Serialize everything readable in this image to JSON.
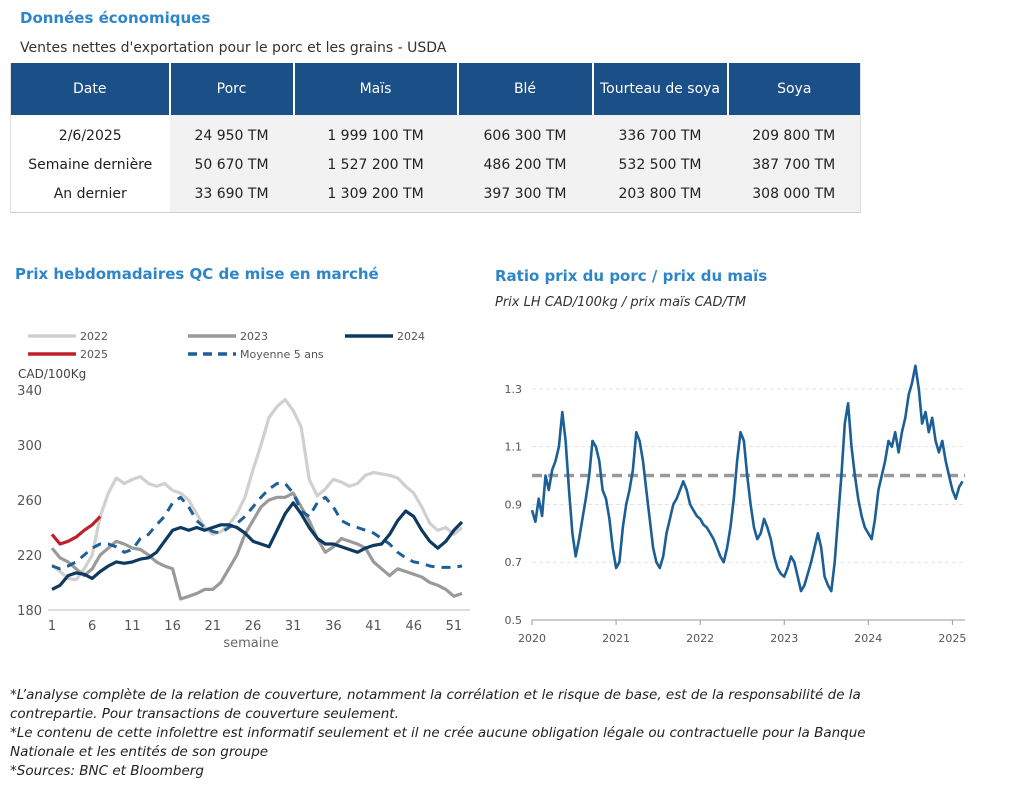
{
  "header": {
    "section_title": "Données économiques",
    "table_caption": "Ventes nettes d'exportation pour le porc et les grains - USDA"
  },
  "exports_table": {
    "columns": [
      "Date",
      "Porc",
      "Maïs",
      "Blé",
      "Tourteau de soya",
      "Soya"
    ],
    "rows": [
      [
        "2/6/2025",
        "24 950 TM",
        "1 999 100 TM",
        "606 300 TM",
        "336 700 TM",
        "209 800 TM"
      ],
      [
        "Semaine dernière",
        "50 670 TM",
        "1 527 200 TM",
        "486 200 TM",
        "532 500 TM",
        "387 700 TM"
      ],
      [
        "An dernier",
        "33 690 TM",
        "1 309 200 TM",
        "397 300 TM",
        "203 800 TM",
        "308 000 TM"
      ]
    ]
  },
  "chart_data": [
    {
      "type": "line",
      "title": "Prix hebdomadaires QC de mise en marché",
      "ylabel": "CAD/100Kg",
      "xlabel": "semaine",
      "ylim": [
        180,
        340
      ],
      "xlim": [
        1,
        53
      ],
      "yticks": [
        180,
        220,
        260,
        300,
        340
      ],
      "xticks": [
        1,
        6,
        11,
        16,
        21,
        26,
        31,
        36,
        41,
        46,
        51
      ],
      "grid": false,
      "legend": "top",
      "series": [
        {
          "name": "2022",
          "color": "#d0d0d0",
          "dash": false,
          "x": [
            1,
            2,
            3,
            4,
            5,
            6,
            7,
            8,
            9,
            10,
            11,
            12,
            13,
            14,
            15,
            16,
            17,
            18,
            19,
            20,
            21,
            22,
            23,
            24,
            25,
            26,
            27,
            28,
            29,
            30,
            31,
            32,
            33,
            34,
            35,
            36,
            37,
            38,
            39,
            40,
            41,
            42,
            43,
            44,
            45,
            46,
            47,
            48,
            49,
            50,
            51,
            52
          ],
          "values": [
            213,
            208,
            203,
            202,
            210,
            220,
            248,
            265,
            276,
            272,
            275,
            277,
            272,
            270,
            272,
            267,
            265,
            260,
            250,
            240,
            235,
            237,
            242,
            250,
            262,
            282,
            300,
            320,
            328,
            333,
            325,
            313,
            275,
            263,
            268,
            275,
            273,
            270,
            272,
            278,
            280,
            279,
            278,
            276,
            270,
            265,
            255,
            243,
            238,
            240,
            235,
            240
          ]
        },
        {
          "name": "2023",
          "color": "#9a9a9a",
          "dash": false,
          "x": [
            1,
            2,
            3,
            4,
            5,
            6,
            7,
            8,
            9,
            10,
            11,
            12,
            13,
            14,
            15,
            16,
            17,
            18,
            19,
            20,
            21,
            22,
            23,
            24,
            25,
            26,
            27,
            28,
            29,
            30,
            31,
            32,
            33,
            34,
            35,
            36,
            37,
            38,
            39,
            40,
            41,
            42,
            43,
            44,
            45,
            46,
            47,
            48,
            49,
            50,
            51,
            52
          ],
          "values": [
            225,
            218,
            215,
            210,
            205,
            210,
            220,
            225,
            230,
            228,
            225,
            224,
            220,
            215,
            212,
            210,
            188,
            190,
            192,
            195,
            195,
            200,
            210,
            220,
            235,
            245,
            255,
            260,
            262,
            262,
            265,
            255,
            245,
            232,
            222,
            226,
            232,
            230,
            228,
            225,
            215,
            210,
            205,
            210,
            208,
            206,
            204,
            200,
            198,
            195,
            190,
            192
          ]
        },
        {
          "name": "2024",
          "color": "#0f3a5f",
          "dash": false,
          "x": [
            1,
            2,
            3,
            4,
            5,
            6,
            7,
            8,
            9,
            10,
            11,
            12,
            13,
            14,
            15,
            16,
            17,
            18,
            19,
            20,
            21,
            22,
            23,
            24,
            25,
            26,
            27,
            28,
            29,
            30,
            31,
            32,
            33,
            34,
            35,
            36,
            37,
            38,
            39,
            40,
            41,
            42,
            43,
            44,
            45,
            46,
            47,
            48,
            49,
            50,
            51,
            52
          ],
          "values": [
            195,
            198,
            205,
            207,
            206,
            203,
            208,
            212,
            215,
            214,
            215,
            217,
            218,
            222,
            230,
            238,
            240,
            238,
            240,
            238,
            240,
            242,
            242,
            240,
            236,
            230,
            228,
            226,
            238,
            250,
            258,
            250,
            240,
            232,
            228,
            228,
            226,
            224,
            222,
            225,
            227,
            228,
            235,
            245,
            252,
            248,
            238,
            230,
            225,
            230,
            238,
            244
          ]
        },
        {
          "name": "2025",
          "color": "#c0202a",
          "dash": false,
          "x": [
            1,
            2,
            3,
            4,
            5,
            6,
            7
          ],
          "values": [
            235,
            228,
            230,
            233,
            238,
            242,
            248
          ]
        },
        {
          "name": "Moyenne 5 ans",
          "color": "#1f5f95",
          "dash": true,
          "x": [
            1,
            2,
            3,
            4,
            5,
            6,
            7,
            8,
            9,
            10,
            11,
            12,
            13,
            14,
            15,
            16,
            17,
            18,
            19,
            20,
            21,
            22,
            23,
            24,
            25,
            26,
            27,
            28,
            29,
            30,
            31,
            32,
            33,
            34,
            35,
            36,
            37,
            38,
            39,
            40,
            41,
            42,
            43,
            44,
            45,
            46,
            47,
            48,
            49,
            50,
            51,
            52
          ],
          "values": [
            212,
            210,
            212,
            215,
            220,
            225,
            228,
            228,
            226,
            222,
            224,
            232,
            235,
            242,
            248,
            258,
            262,
            255,
            245,
            240,
            237,
            236,
            240,
            243,
            248,
            255,
            262,
            268,
            272,
            272,
            265,
            252,
            248,
            258,
            262,
            255,
            245,
            242,
            240,
            238,
            236,
            232,
            228,
            222,
            218,
            215,
            214,
            212,
            211,
            211,
            211,
            212
          ]
        }
      ]
    },
    {
      "type": "line",
      "title": "Ratio prix du porc / prix du maïs",
      "subtitle": "Prix LH CAD/100kg / prix maïs CAD/TM",
      "ylim": [
        0.5,
        1.4
      ],
      "xlim": [
        2020.0,
        2025.15
      ],
      "yticks": [
        0.5,
        0.7,
        0.9,
        1.1,
        1.3
      ],
      "xticks": [
        2020,
        2021,
        2022,
        2023,
        2024,
        2025
      ],
      "grid": true,
      "reference_line": {
        "value": 1.0,
        "color": "#999999",
        "dash": true
      },
      "series": [
        {
          "color": "#1b5f96",
          "x": [
            2020.0,
            2020.04,
            2020.08,
            2020.12,
            2020.16,
            2020.2,
            2020.24,
            2020.28,
            2020.32,
            2020.36,
            2020.4,
            2020.44,
            2020.48,
            2020.52,
            2020.56,
            2020.6,
            2020.64,
            2020.68,
            2020.72,
            2020.76,
            2020.8,
            2020.84,
            2020.88,
            2020.92,
            2020.96,
            2021.0,
            2021.04,
            2021.08,
            2021.12,
            2021.16,
            2021.2,
            2021.24,
            2021.28,
            2021.32,
            2021.36,
            2021.4,
            2021.44,
            2021.48,
            2021.52,
            2021.56,
            2021.6,
            2021.64,
            2021.68,
            2021.72,
            2021.76,
            2021.8,
            2021.84,
            2021.88,
            2021.92,
            2021.96,
            2022.0,
            2022.04,
            2022.08,
            2022.12,
            2022.16,
            2022.2,
            2022.24,
            2022.28,
            2022.32,
            2022.36,
            2022.4,
            2022.44,
            2022.48,
            2022.52,
            2022.56,
            2022.6,
            2022.64,
            2022.68,
            2022.72,
            2022.76,
            2022.8,
            2022.84,
            2022.88,
            2022.92,
            2022.96,
            2023.0,
            2023.04,
            2023.08,
            2023.12,
            2023.16,
            2023.2,
            2023.24,
            2023.28,
            2023.32,
            2023.36,
            2023.4,
            2023.44,
            2023.48,
            2023.52,
            2023.56,
            2023.6,
            2023.64,
            2023.68,
            2023.72,
            2023.76,
            2023.8,
            2023.84,
            2023.88,
            2023.92,
            2023.96,
            2024.0,
            2024.04,
            2024.08,
            2024.12,
            2024.16,
            2024.2,
            2024.24,
            2024.28,
            2024.32,
            2024.36,
            2024.4,
            2024.44,
            2024.48,
            2024.52,
            2024.56,
            2024.6,
            2024.64,
            2024.68,
            2024.72,
            2024.76,
            2024.8,
            2024.84,
            2024.88,
            2024.92,
            2024.96,
            2025.0,
            2025.04,
            2025.08,
            2025.12
          ],
          "values": [
            0.88,
            0.84,
            0.92,
            0.86,
            1.0,
            0.95,
            1.02,
            1.05,
            1.1,
            1.22,
            1.12,
            0.95,
            0.8,
            0.72,
            0.78,
            0.85,
            0.92,
            1.0,
            1.12,
            1.1,
            1.05,
            0.95,
            0.92,
            0.85,
            0.75,
            0.68,
            0.7,
            0.82,
            0.9,
            0.95,
            1.02,
            1.15,
            1.12,
            1.05,
            0.95,
            0.85,
            0.75,
            0.7,
            0.68,
            0.72,
            0.8,
            0.85,
            0.9,
            0.92,
            0.95,
            0.98,
            0.95,
            0.9,
            0.88,
            0.86,
            0.85,
            0.83,
            0.82,
            0.8,
            0.78,
            0.75,
            0.72,
            0.7,
            0.75,
            0.82,
            0.92,
            1.05,
            1.15,
            1.12,
            1.0,
            0.9,
            0.82,
            0.78,
            0.8,
            0.85,
            0.82,
            0.78,
            0.72,
            0.68,
            0.66,
            0.65,
            0.68,
            0.72,
            0.7,
            0.65,
            0.6,
            0.62,
            0.66,
            0.7,
            0.75,
            0.8,
            0.75,
            0.65,
            0.62,
            0.6,
            0.7,
            0.85,
            1.0,
            1.18,
            1.25,
            1.1,
            1.0,
            0.92,
            0.86,
            0.82,
            0.8,
            0.78,
            0.85,
            0.95,
            1.0,
            1.05,
            1.12,
            1.1,
            1.15,
            1.08,
            1.15,
            1.2,
            1.28,
            1.32,
            1.38,
            1.3,
            1.18,
            1.22,
            1.15,
            1.2,
            1.12,
            1.08,
            1.12,
            1.05,
            1.0,
            0.95,
            0.92,
            0.96,
            0.98
          ]
        }
      ]
    }
  ],
  "notes": [
    "*L’analyse complète de la relation de couverture, notamment la corrélation et le risque de base, est de la responsabilité de la contrepartie. Pour transactions de couverture seulement.",
    "*Le contenu de cette infolettre est informatif seulement et il ne crée aucune obligation légale ou contractuelle pour la Banque Nationale et les entités de son groupe",
    "*Sources: BNC et Bloomberg"
  ]
}
